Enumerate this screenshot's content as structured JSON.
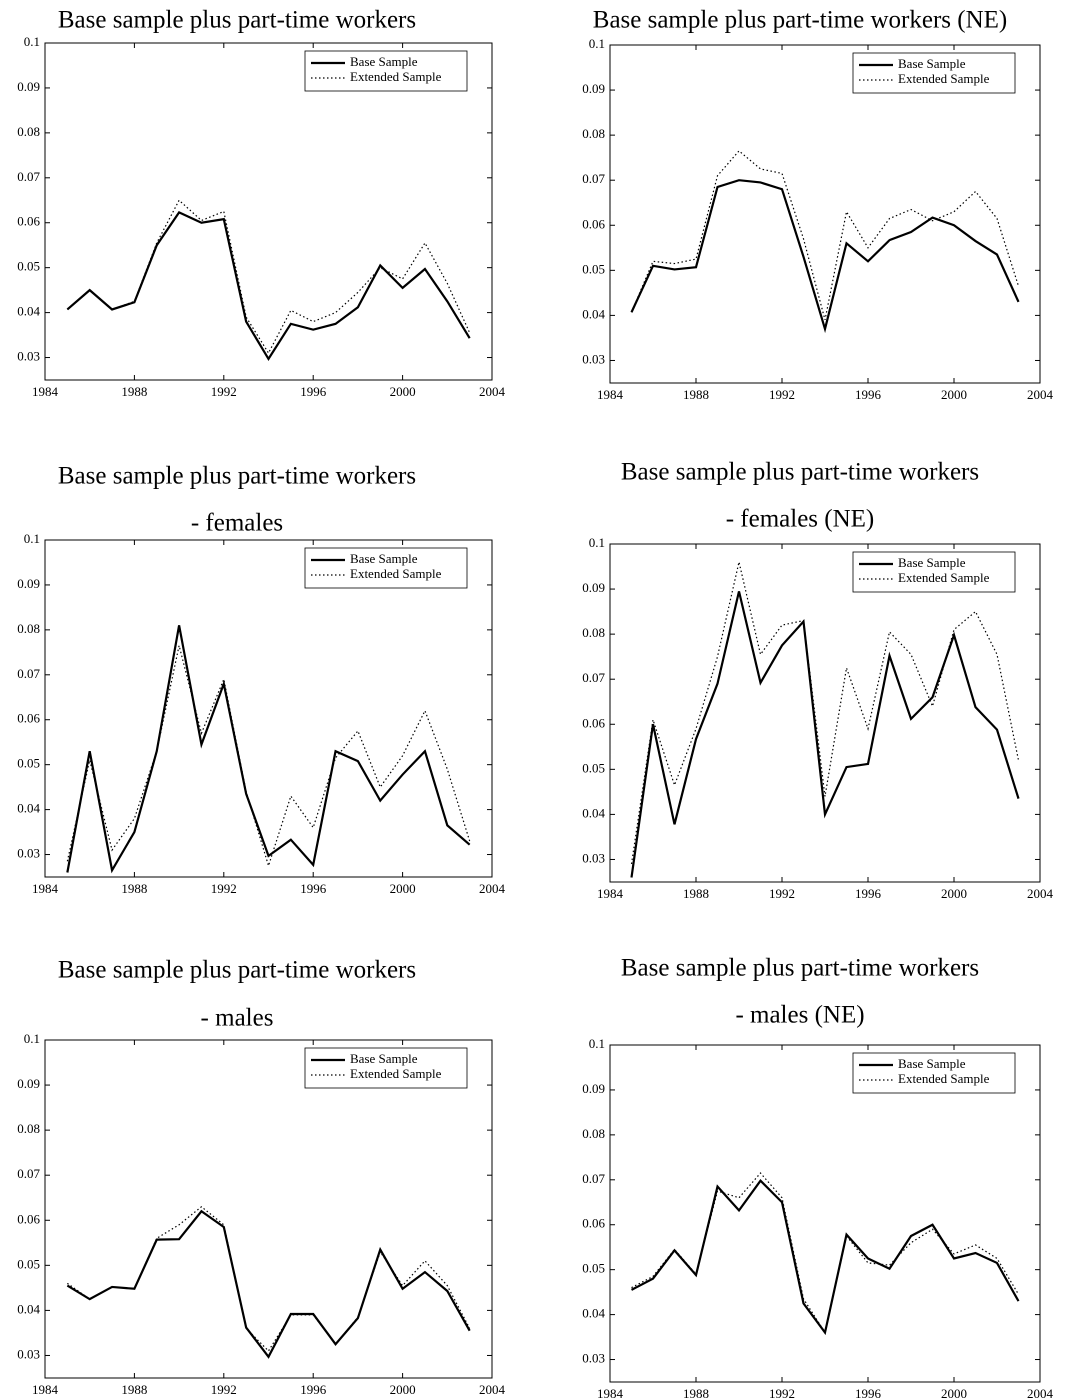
{
  "chart_data": [
    {
      "type": "line",
      "title": [
        "Base sample plus part-time workers"
      ],
      "x": [
        1985,
        1986,
        1987,
        1988,
        1989,
        1990,
        1991,
        1992,
        1993,
        1994,
        1995,
        1996,
        1997,
        1998,
        1999,
        2000,
        2001,
        2002,
        2003
      ],
      "xlim": [
        1984,
        2004
      ],
      "xticks": [
        1984,
        1988,
        1992,
        1996,
        2000,
        2004
      ],
      "ylim": [
        0.025,
        0.1
      ],
      "yticks": [
        0.03,
        0.04,
        0.05,
        0.06,
        0.07,
        0.08,
        0.09,
        0.1
      ],
      "legend": "upper right",
      "series": [
        {
          "name": "Base Sample",
          "color": "#000000",
          "line_style": "solid",
          "values": [
            0.0407,
            0.045,
            0.0407,
            0.0423,
            0.055,
            0.0623,
            0.06,
            0.0608,
            0.038,
            0.0297,
            0.0375,
            0.0362,
            0.0375,
            0.0412,
            0.0505,
            0.0455,
            0.0497,
            0.0425,
            0.0343
          ]
        },
        {
          "name": "Extended Sample",
          "color": "#000000",
          "line_style": "dotted",
          "values": [
            0.0407,
            0.045,
            0.0407,
            0.0425,
            0.0555,
            0.065,
            0.0605,
            0.0625,
            0.039,
            0.031,
            0.0405,
            0.038,
            0.04,
            0.0445,
            0.05,
            0.0475,
            0.0555,
            0.0465,
            0.0355
          ]
        }
      ]
    },
    {
      "type": "line",
      "title": [
        "Base sample plus part-time workers (NE)"
      ],
      "x": [
        1985,
        1986,
        1987,
        1988,
        1989,
        1990,
        1991,
        1992,
        1993,
        1994,
        1995,
        1996,
        1997,
        1998,
        1999,
        2000,
        2001,
        2002,
        2003
      ],
      "xlim": [
        1984,
        2004
      ],
      "xticks": [
        1984,
        1988,
        1992,
        1996,
        2000,
        2004
      ],
      "ylim": [
        0.025,
        0.1
      ],
      "yticks": [
        0.03,
        0.04,
        0.05,
        0.06,
        0.07,
        0.08,
        0.09,
        0.1
      ],
      "legend": "upper right",
      "series": [
        {
          "name": "Base Sample",
          "color": "#000000",
          "line_style": "solid",
          "values": [
            0.0407,
            0.051,
            0.0502,
            0.0507,
            0.0685,
            0.07,
            0.0695,
            0.068,
            0.053,
            0.037,
            0.056,
            0.052,
            0.0567,
            0.0585,
            0.0617,
            0.06,
            0.0565,
            0.0535,
            0.043
          ]
        },
        {
          "name": "Extended Sample",
          "color": "#000000",
          "line_style": "dotted",
          "values": [
            0.0407,
            0.052,
            0.0515,
            0.0525,
            0.071,
            0.0765,
            0.0725,
            0.0715,
            0.057,
            0.039,
            0.063,
            0.055,
            0.0615,
            0.0635,
            0.061,
            0.063,
            0.0675,
            0.0615,
            0.0465
          ]
        }
      ]
    },
    {
      "type": "line",
      "title": [
        "Base sample plus part-time workers",
        "- females"
      ],
      "x": [
        1985,
        1986,
        1987,
        1988,
        1989,
        1990,
        1991,
        1992,
        1993,
        1994,
        1995,
        1996,
        1997,
        1998,
        1999,
        2000,
        2001,
        2002,
        2003
      ],
      "xlim": [
        1984,
        2004
      ],
      "xticks": [
        1984,
        1988,
        1992,
        1996,
        2000,
        2004
      ],
      "ylim": [
        0.025,
        0.1
      ],
      "yticks": [
        0.03,
        0.04,
        0.05,
        0.06,
        0.07,
        0.08,
        0.09,
        0.1
      ],
      "legend": "upper right",
      "series": [
        {
          "name": "Base Sample",
          "color": "#000000",
          "line_style": "solid",
          "values": [
            0.026,
            0.053,
            0.0265,
            0.035,
            0.053,
            0.081,
            0.0545,
            0.068,
            0.0435,
            0.0297,
            0.0333,
            0.0277,
            0.053,
            0.0508,
            0.042,
            0.0478,
            0.053,
            0.0365,
            0.0322
          ]
        },
        {
          "name": "Extended Sample",
          "color": "#000000",
          "line_style": "dotted",
          "values": [
            0.0285,
            0.051,
            0.031,
            0.038,
            0.053,
            0.0765,
            0.057,
            0.069,
            0.044,
            0.0275,
            0.043,
            0.036,
            0.0515,
            0.0575,
            0.045,
            0.052,
            0.062,
            0.049,
            0.033
          ]
        }
      ]
    },
    {
      "type": "line",
      "title": [
        "Base sample plus part-time workers",
        "- females (NE)"
      ],
      "x": [
        1985,
        1986,
        1987,
        1988,
        1989,
        1990,
        1991,
        1992,
        1993,
        1994,
        1995,
        1996,
        1997,
        1998,
        1999,
        2000,
        2001,
        2002,
        2003
      ],
      "xlim": [
        1984,
        2004
      ],
      "xticks": [
        1984,
        1988,
        1992,
        1996,
        2000,
        2004
      ],
      "ylim": [
        0.025,
        0.1
      ],
      "yticks": [
        0.03,
        0.04,
        0.05,
        0.06,
        0.07,
        0.08,
        0.09,
        0.1
      ],
      "legend": "upper right",
      "series": [
        {
          "name": "Base Sample",
          "color": "#000000",
          "line_style": "solid",
          "values": [
            0.026,
            0.06,
            0.0378,
            0.0567,
            0.069,
            0.0895,
            0.0692,
            0.0775,
            0.0828,
            0.04,
            0.0505,
            0.0512,
            0.0752,
            0.0612,
            0.066,
            0.0798,
            0.0638,
            0.0588,
            0.0435
          ]
        },
        {
          "name": "Extended Sample",
          "color": "#000000",
          "line_style": "dotted",
          "values": [
            0.029,
            0.061,
            0.0465,
            0.059,
            0.075,
            0.096,
            0.0755,
            0.082,
            0.083,
            0.044,
            0.0725,
            0.059,
            0.0805,
            0.0755,
            0.064,
            0.081,
            0.085,
            0.0755,
            0.052
          ]
        }
      ]
    },
    {
      "type": "line",
      "title": [
        "Base sample plus part-time workers",
        "- males"
      ],
      "x": [
        1985,
        1986,
        1987,
        1988,
        1989,
        1990,
        1991,
        1992,
        1993,
        1994,
        1995,
        1996,
        1997,
        1998,
        1999,
        2000,
        2001,
        2002,
        2003
      ],
      "xlim": [
        1984,
        2004
      ],
      "xticks": [
        1984,
        1988,
        1992,
        1996,
        2000,
        2004
      ],
      "ylim": [
        0.025,
        0.1
      ],
      "yticks": [
        0.03,
        0.04,
        0.05,
        0.06,
        0.07,
        0.08,
        0.09,
        0.1
      ],
      "legend": "upper right",
      "series": [
        {
          "name": "Base Sample",
          "color": "#000000",
          "line_style": "solid",
          "values": [
            0.0455,
            0.0425,
            0.0452,
            0.0448,
            0.0557,
            0.0558,
            0.062,
            0.0585,
            0.0362,
            0.0297,
            0.0392,
            0.0392,
            0.0325,
            0.0383,
            0.0535,
            0.0448,
            0.0485,
            0.0443,
            0.0355
          ]
        },
        {
          "name": "Extended Sample",
          "color": "#000000",
          "line_style": "dotted",
          "values": [
            0.046,
            0.0425,
            0.0452,
            0.0448,
            0.056,
            0.059,
            0.063,
            0.059,
            0.036,
            0.031,
            0.039,
            0.039,
            0.0325,
            0.0385,
            0.053,
            0.0455,
            0.051,
            0.0455,
            0.036
          ]
        }
      ]
    },
    {
      "type": "line",
      "title": [
        "Base sample plus part-time workers",
        "- males (NE)"
      ],
      "x": [
        1985,
        1986,
        1987,
        1988,
        1989,
        1990,
        1991,
        1992,
        1993,
        1994,
        1995,
        1996,
        1997,
        1998,
        1999,
        2000,
        2001,
        2002,
        2003
      ],
      "xlim": [
        1984,
        2004
      ],
      "xticks": [
        1984,
        1988,
        1992,
        1996,
        2000,
        2004
      ],
      "ylim": [
        0.025,
        0.1
      ],
      "yticks": [
        0.03,
        0.04,
        0.05,
        0.06,
        0.07,
        0.08,
        0.09,
        0.1
      ],
      "legend": "upper right",
      "series": [
        {
          "name": "Base Sample",
          "color": "#000000",
          "line_style": "solid",
          "values": [
            0.0455,
            0.048,
            0.0543,
            0.0488,
            0.0685,
            0.0632,
            0.0698,
            0.065,
            0.0425,
            0.036,
            0.0578,
            0.0525,
            0.0502,
            0.0575,
            0.06,
            0.0525,
            0.0537,
            0.0515,
            0.043
          ]
        },
        {
          "name": "Extended Sample",
          "color": "#000000",
          "line_style": "dotted",
          "values": [
            0.046,
            0.0485,
            0.0545,
            0.049,
            0.0675,
            0.066,
            0.0715,
            0.066,
            0.0435,
            0.036,
            0.0575,
            0.0515,
            0.051,
            0.056,
            0.059,
            0.0535,
            0.0555,
            0.0525,
            0.0445
          ]
        }
      ]
    }
  ]
}
